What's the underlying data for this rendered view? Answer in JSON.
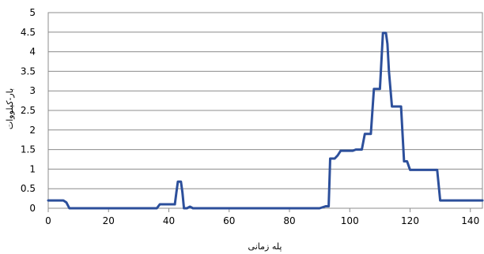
{
  "chart_data": {
    "type": "line",
    "title": "",
    "xlabel": "پله زمانی",
    "ylabel": "بار-کیلووات",
    "xlim": [
      0,
      144
    ],
    "ylim": [
      0,
      5
    ],
    "x_ticks": [
      0,
      20,
      40,
      60,
      80,
      100,
      120,
      140
    ],
    "y_ticks": [
      0,
      0.5,
      1,
      1.5,
      2,
      2.5,
      3,
      3.5,
      4,
      4.5,
      5
    ],
    "y_tick_labels": [
      "0",
      "0.5",
      "1",
      "1.5",
      "2",
      "2.5",
      "3",
      "3.5",
      "4",
      "4.5",
      "5"
    ],
    "grid": true,
    "series": [
      {
        "color": "#2c4f9b",
        "x": [
          0,
          5,
          6,
          7,
          36,
          37,
          42,
          42.5,
          43,
          44,
          44.5,
          45,
          46,
          47,
          48,
          90,
          92,
          93,
          93.5,
          95,
          96,
          97,
          98,
          101,
          102,
          104,
          105,
          106,
          107,
          108,
          109,
          110,
          111,
          112,
          112.5,
          113,
          114,
          115,
          116,
          117,
          118,
          119,
          120,
          121,
          122,
          129,
          130,
          131,
          144
        ],
        "y": [
          0.2,
          0.2,
          0.15,
          0,
          0,
          0.1,
          0.1,
          0.4,
          0.68,
          0.68,
          0.4,
          0,
          0,
          0.04,
          0,
          0,
          0.05,
          0.05,
          1.27,
          1.27,
          1.35,
          1.47,
          1.47,
          1.47,
          1.5,
          1.5,
          1.9,
          1.9,
          1.9,
          3.05,
          3.05,
          3.05,
          4.48,
          4.48,
          4.2,
          3.5,
          2.6,
          2.6,
          2.6,
          2.6,
          1.2,
          1.2,
          0.98,
          0.98,
          0.98,
          0.98,
          0.2,
          0.2,
          0.2
        ]
      }
    ]
  }
}
